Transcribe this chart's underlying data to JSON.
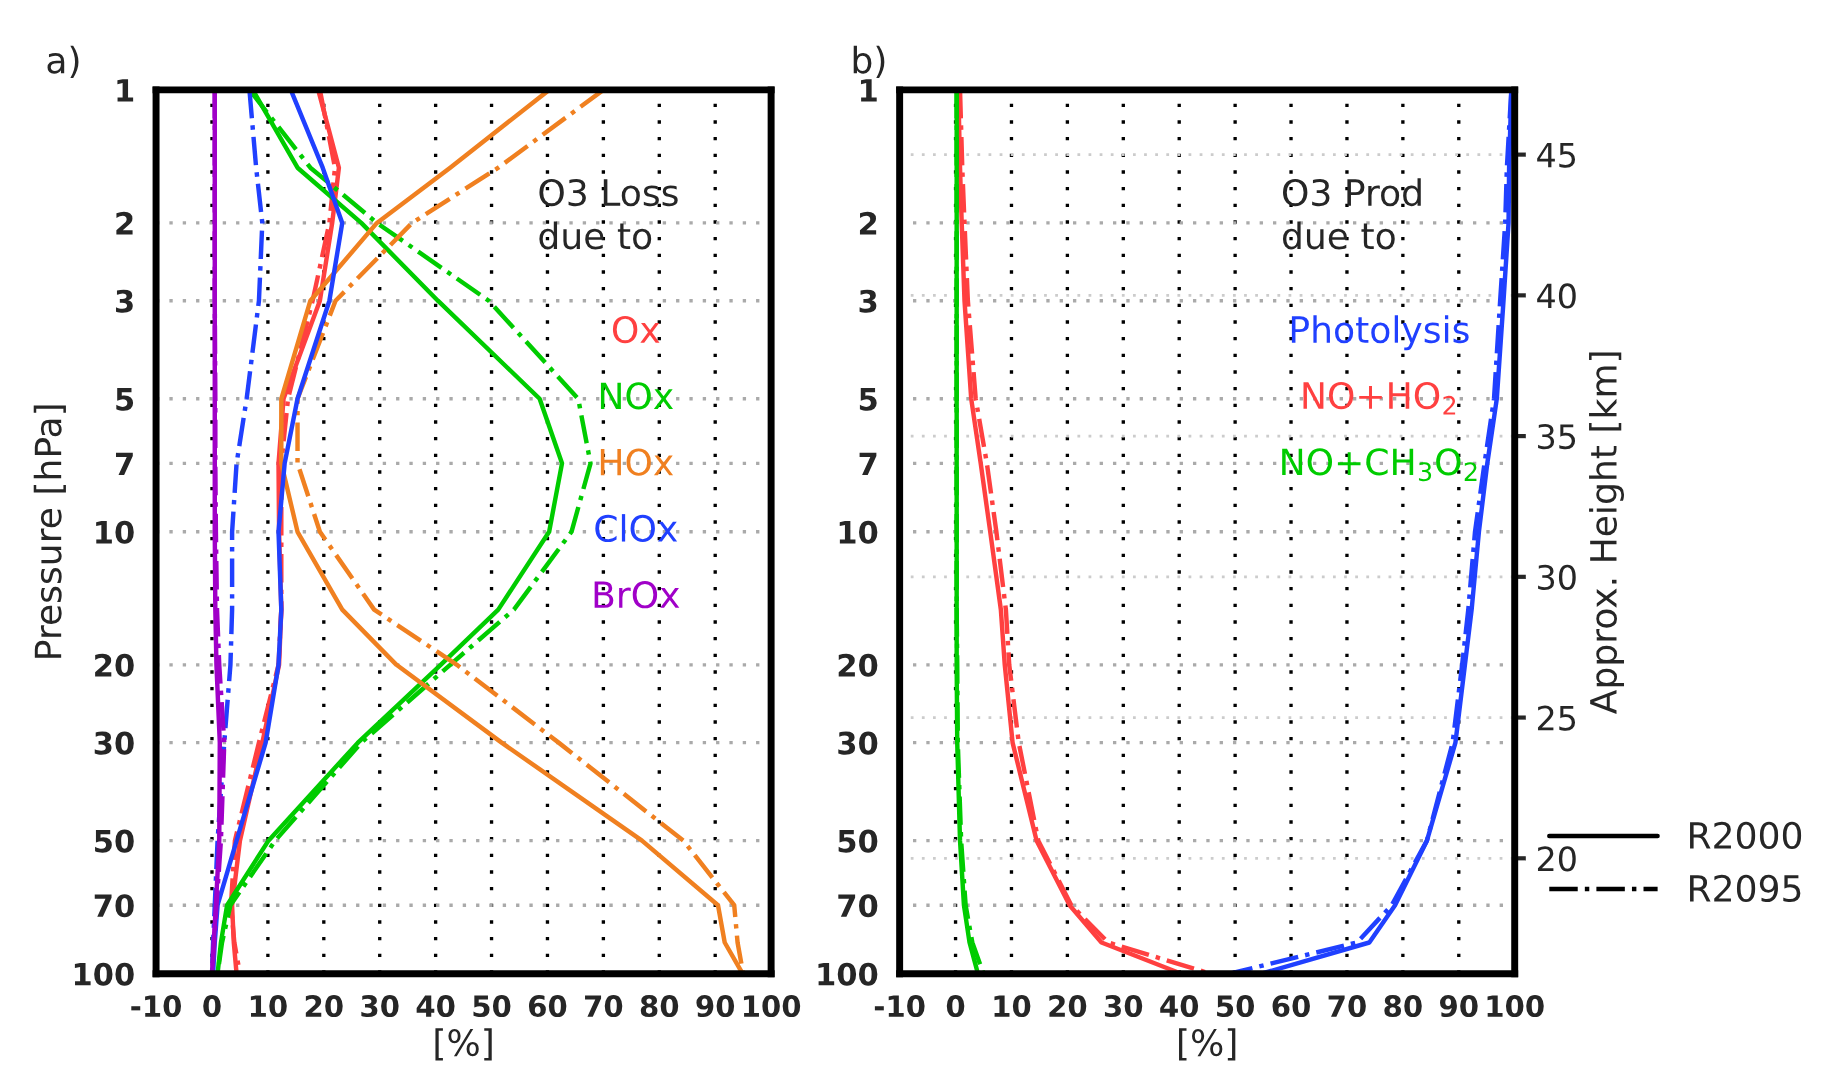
{
  "chart_data": [
    {
      "type": "line",
      "title": "a)",
      "xlabel": "[%]",
      "ylabel": "Pressure [hPa]",
      "orientation": "horizontal",
      "log": "y",
      "grid": true,
      "legend": "top right",
      "legend_title": "O3 Loss\ndue to",
      "x": [
        1,
        1.5,
        2,
        3,
        5,
        7,
        10,
        15,
        20,
        30,
        50,
        70,
        85,
        100
      ],
      "xlim": [
        -10,
        100
      ],
      "xticks": [
        -10,
        0,
        10,
        20,
        30,
        40,
        50,
        60,
        70,
        80,
        90,
        100
      ],
      "ylim": [
        100,
        1
      ],
      "yticks": [
        1,
        2,
        3,
        5,
        7,
        10,
        20,
        30,
        50,
        70,
        100
      ],
      "series": [
        {
          "name": "Ox",
          "color": "#ff4040",
          "line_style": "solid",
          "values": [
            19,
            22.7,
            21.5,
            19.3,
            12.8,
            11.9,
            12,
            12.4,
            12,
            9,
            5,
            3.6,
            3.9,
            4.4
          ]
        },
        {
          "color": "#ff4040",
          "line_style": "dashdot",
          "values": [
            19.3,
            22,
            21,
            18,
            13.6,
            12.4,
            12.4,
            12.4,
            11.9,
            8.4,
            4.1,
            3.4,
            4,
            5
          ]
        },
        {
          "name": "NOx",
          "color": "#00cc00",
          "line_style": "solid",
          "values": [
            7.3,
            15.3,
            26.7,
            40.4,
            58.6,
            62.6,
            60.3,
            51.2,
            40.9,
            26.1,
            10.1,
            2.7,
            1.6,
            1
          ]
        },
        {
          "color": "#00cc00",
          "line_style": "dashdot",
          "values": [
            6.7,
            17.6,
            29.5,
            49.5,
            65.5,
            67.7,
            64.3,
            54,
            42.6,
            26.7,
            11.3,
            3.3,
            1.8,
            1
          ]
        },
        {
          "name": "HOx",
          "color": "#f08020",
          "line_style": "solid",
          "values": [
            60.3,
            42.6,
            29.5,
            17.6,
            12.4,
            12.4,
            15.3,
            23.3,
            33,
            51.8,
            76.9,
            90.5,
            91.7,
            94.9
          ]
        },
        {
          "color": "#f08020",
          "line_style": "dashdot",
          "values": [
            70,
            51.2,
            35.8,
            22.1,
            15.3,
            15.3,
            19.3,
            29,
            43.8,
            62,
            84.3,
            93.4,
            94,
            95
          ]
        },
        {
          "name": "ClOx",
          "color": "#2040ff",
          "line_style": "solid",
          "values": [
            14.1,
            19.8,
            23.3,
            21,
            15.3,
            13,
            11.9,
            12.4,
            11.9,
            9.6,
            4.4,
            1,
            0.5,
            0.2
          ]
        },
        {
          "color": "#2040ff",
          "line_style": "dashdot",
          "values": [
            6.7,
            7.9,
            9,
            8.4,
            6.2,
            4.4,
            3.6,
            3.6,
            3.3,
            2.2,
            1,
            0.5,
            0.2,
            0
          ]
        },
        {
          "name": "BrOx",
          "color": "#a000c8",
          "line_style": "solid",
          "values": [
            0.5,
            0.5,
            0.5,
            0.5,
            0.5,
            0.5,
            0.5,
            0.6,
            0.8,
            1.4,
            1.3,
            0.7,
            0.3,
            0
          ]
        },
        {
          "color": "#a000c8",
          "line_style": "dashdot",
          "values": [
            0.5,
            0.5,
            0.5,
            0.5,
            0.6,
            0.6,
            0.7,
            0.9,
            1.3,
            2.2,
            1.6,
            0.8,
            0.4,
            0
          ]
        }
      ]
    },
    {
      "type": "line",
      "title": "b)",
      "xlabel": "[%]",
      "y2label": "Approx. Height [km]",
      "orientation": "horizontal",
      "log": "y",
      "grid": true,
      "legend": "top right",
      "legend_title": "O3 Prod\ndue to",
      "annotations": [
        "R2000",
        "R2095"
      ],
      "x": [
        1,
        1.5,
        2,
        3,
        5,
        7,
        10,
        15,
        20,
        30,
        50,
        70,
        85,
        100
      ],
      "xlim": [
        -10,
        100
      ],
      "xticks": [
        -10,
        0,
        10,
        20,
        30,
        40,
        50,
        60,
        70,
        80,
        90,
        100
      ],
      "ylim": [
        100,
        1
      ],
      "yticks": [
        1,
        2,
        3,
        5,
        7,
        10,
        20,
        30,
        50,
        70,
        100
      ],
      "y2lim": [
        15.9,
        47.3
      ],
      "y2ticks": [
        20,
        25,
        30,
        35,
        40,
        45
      ],
      "series": [
        {
          "name": "Photolysis",
          "color": "#2040ff",
          "line_style": "solid",
          "values": [
            99.4,
            99,
            98.9,
            98,
            96.8,
            95.1,
            93.6,
            92.3,
            91.1,
            89.4,
            84.3,
            78.6,
            74,
            54.7
          ]
        },
        {
          "color": "#2040ff",
          "line_style": "dashdot",
          "values": [
            99.4,
            98.6,
            98.3,
            97.4,
            96.3,
            94.6,
            92.9,
            91.7,
            90.6,
            88.9,
            84.3,
            78,
            71.8,
            49
          ]
        },
        {
          "name": "NO+HO$_{2}$",
          "color": "#ff4040",
          "line_style": "solid",
          "values": [
            0.5,
            0.8,
            1.1,
            1.6,
            2.8,
            4.5,
            6.2,
            8.1,
            8.8,
            10.2,
            14.5,
            20.4,
            26.1,
            40.4
          ]
        },
        {
          "color": "#ff4040",
          "line_style": "dashdot",
          "values": [
            0.8,
            1.2,
            1.6,
            2.2,
            3.6,
            5.6,
            7.3,
            9,
            9.6,
            11.3,
            14.8,
            20.7,
            27.3,
            45.6
          ]
        },
        {
          "name": "NO+CH$_{3}$O$_{2}$",
          "color": "#00cc00",
          "line_style": "solid",
          "values": [
            0.2,
            0.2,
            0.2,
            0.2,
            0.2,
            0.2,
            0.2,
            0.2,
            0.2,
            0.3,
            0.8,
            1.5,
            2.5,
            4
          ]
        },
        {
          "color": "#00cc00",
          "line_style": "dashdot",
          "values": [
            0.2,
            0.2,
            0.2,
            0.2,
            0.2,
            0.2,
            0.2,
            0.2,
            0.3,
            0.4,
            1,
            1.8,
            3,
            5
          ]
        }
      ]
    }
  ]
}
